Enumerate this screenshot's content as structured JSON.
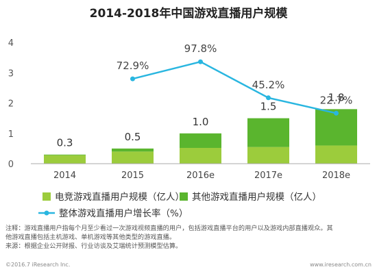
{
  "chart_data": {
    "type": "bar",
    "title": "2014-2018年中国游戏直播用户规模",
    "categories": [
      "2014",
      "2015",
      "2016e",
      "2017e",
      "2018e"
    ],
    "ylim": [
      0,
      4
    ],
    "yticks": [
      0,
      1,
      2,
      3,
      4
    ],
    "series": [
      {
        "name": "电竞游戏直播用户规模（亿人）",
        "kind": "bar-stacked",
        "color": "#9ccc3c",
        "values": [
          0.28,
          0.4,
          0.52,
          0.55,
          0.6
        ]
      },
      {
        "name": "其他游戏直播用户规模（亿人）",
        "kind": "bar-stacked",
        "color": "#5ab52e",
        "values": [
          0.02,
          0.1,
          0.48,
          0.95,
          1.2
        ]
      },
      {
        "name": "整体游戏直播用户增长率（%）",
        "kind": "line",
        "color": "#29b6e0",
        "x": [
          "2015",
          "2016e",
          "2017e",
          "2018e"
        ],
        "values": [
          72.9,
          97.8,
          45.2,
          22.7
        ],
        "labels": [
          "72.9%",
          "97.8%",
          "45.2%",
          "22.7%"
        ]
      }
    ],
    "total_labels": [
      "0.3",
      "0.5",
      "1.0",
      "1.5",
      "1.8"
    ],
    "legend_position": "bottom-left",
    "grid": false
  },
  "notes": {
    "line1": "注释：游戏直播用户指每个月至少看过一次游戏视频直播的用户，包括游戏直播平台的用户以及游戏内部直播观众。其",
    "line2": "他游戏直播包括主机游戏、单机游戏等其他类型的游戏直播。",
    "line3": "来源：根据企业公开财报、行业访谈及艾瑞统计预测模型估算。"
  },
  "footer": {
    "left": "©2016.7 iResearch Inc.",
    "right": "www.iresearch.com.cn"
  }
}
